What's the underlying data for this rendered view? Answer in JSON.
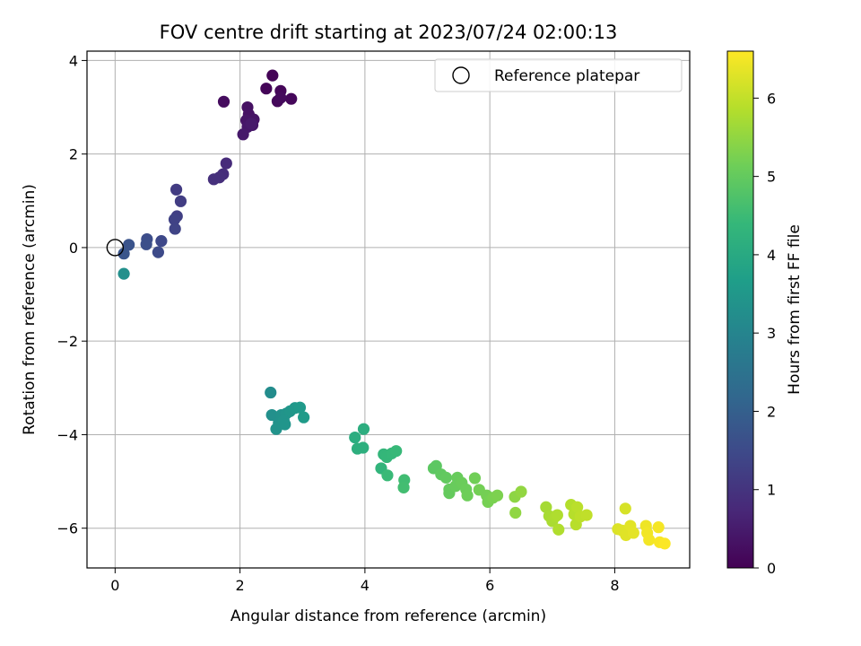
{
  "chart_data": {
    "type": "scatter",
    "title": "FOV centre drift starting at 2023/07/24 02:00:13",
    "xlabel": "Angular distance from reference (arcmin)",
    "ylabel": "Rotation from reference (arcmin)",
    "xlim": [
      -0.45,
      9.2
    ],
    "ylim": [
      -6.85,
      4.2
    ],
    "xticks": [
      0,
      2,
      4,
      6,
      8
    ],
    "yticks": [
      -6,
      -4,
      -2,
      0,
      2,
      4
    ],
    "grid": true,
    "colormap": "viridis",
    "colorbar": {
      "label": "Hours from first FF file",
      "range": [
        0,
        6.6
      ],
      "ticks": [
        0,
        1,
        2,
        3,
        4,
        5,
        6
      ]
    },
    "legend": {
      "placement": "upper-right",
      "entries": [
        "Reference platepar"
      ]
    },
    "reference_point": {
      "x": 0,
      "y": 0,
      "label": "Reference platepar"
    },
    "points": [
      {
        "x": 2.52,
        "y": 3.68,
        "h": 0.05
      },
      {
        "x": 2.42,
        "y": 3.4,
        "h": 0.08
      },
      {
        "x": 2.65,
        "y": 3.35,
        "h": 0.1
      },
      {
        "x": 2.82,
        "y": 3.18,
        "h": 0.12
      },
      {
        "x": 2.6,
        "y": 3.13,
        "h": 0.15
      },
      {
        "x": 2.65,
        "y": 3.2,
        "h": 0.17
      },
      {
        "x": 1.74,
        "y": 3.12,
        "h": 0.2
      },
      {
        "x": 2.12,
        "y": 3.0,
        "h": 0.3
      },
      {
        "x": 2.14,
        "y": 2.85,
        "h": 0.32
      },
      {
        "x": 2.22,
        "y": 2.74,
        "h": 0.35
      },
      {
        "x": 2.1,
        "y": 2.72,
        "h": 0.37
      },
      {
        "x": 2.2,
        "y": 2.62,
        "h": 0.4
      },
      {
        "x": 2.12,
        "y": 2.58,
        "h": 0.42
      },
      {
        "x": 2.05,
        "y": 2.42,
        "h": 0.45
      },
      {
        "x": 2.18,
        "y": 2.65,
        "h": 0.47
      },
      {
        "x": 1.78,
        "y": 1.8,
        "h": 0.8
      },
      {
        "x": 1.73,
        "y": 1.57,
        "h": 0.85
      },
      {
        "x": 1.67,
        "y": 1.5,
        "h": 0.88
      },
      {
        "x": 1.58,
        "y": 1.46,
        "h": 0.9
      },
      {
        "x": 0.98,
        "y": 1.24,
        "h": 1.15
      },
      {
        "x": 1.05,
        "y": 0.99,
        "h": 1.2
      },
      {
        "x": 0.99,
        "y": 0.67,
        "h": 1.25
      },
      {
        "x": 0.95,
        "y": 0.6,
        "h": 1.3
      },
      {
        "x": 0.96,
        "y": 0.4,
        "h": 1.35
      },
      {
        "x": 0.74,
        "y": 0.14,
        "h": 1.45
      },
      {
        "x": 0.69,
        "y": -0.1,
        "h": 1.5
      },
      {
        "x": 0.51,
        "y": 0.18,
        "h": 1.55
      },
      {
        "x": 0.5,
        "y": 0.07,
        "h": 1.6
      },
      {
        "x": 0.22,
        "y": 0.06,
        "h": 1.7
      },
      {
        "x": 0.14,
        "y": -0.13,
        "h": 1.75
      },
      {
        "x": 0.14,
        "y": -0.56,
        "h": 3.3
      },
      {
        "x": 2.49,
        "y": -3.1,
        "h": 3.2
      },
      {
        "x": 2.51,
        "y": -3.58,
        "h": 3.3
      },
      {
        "x": 2.66,
        "y": -3.58,
        "h": 3.35
      },
      {
        "x": 2.74,
        "y": -3.55,
        "h": 3.4
      },
      {
        "x": 2.8,
        "y": -3.5,
        "h": 3.45
      },
      {
        "x": 2.88,
        "y": -3.43,
        "h": 3.5
      },
      {
        "x": 2.96,
        "y": -3.42,
        "h": 3.55
      },
      {
        "x": 3.02,
        "y": -3.63,
        "h": 3.6
      },
      {
        "x": 2.62,
        "y": -3.75,
        "h": 3.35
      },
      {
        "x": 2.7,
        "y": -3.7,
        "h": 3.4
      },
      {
        "x": 2.58,
        "y": -3.88,
        "h": 3.38
      },
      {
        "x": 2.72,
        "y": -3.78,
        "h": 3.42
      },
      {
        "x": 3.84,
        "y": -4.06,
        "h": 4.1
      },
      {
        "x": 3.98,
        "y": -3.88,
        "h": 4.12
      },
      {
        "x": 3.88,
        "y": -4.3,
        "h": 4.15
      },
      {
        "x": 3.97,
        "y": -4.28,
        "h": 4.18
      },
      {
        "x": 4.26,
        "y": -4.72,
        "h": 4.3
      },
      {
        "x": 4.3,
        "y": -4.42,
        "h": 4.35
      },
      {
        "x": 4.35,
        "y": -4.48,
        "h": 4.38
      },
      {
        "x": 4.43,
        "y": -4.4,
        "h": 4.4
      },
      {
        "x": 4.5,
        "y": -4.35,
        "h": 4.42
      },
      {
        "x": 4.36,
        "y": -4.87,
        "h": 4.45
      },
      {
        "x": 4.63,
        "y": -4.97,
        "h": 4.55
      },
      {
        "x": 4.62,
        "y": -5.13,
        "h": 4.58
      },
      {
        "x": 5.1,
        "y": -4.72,
        "h": 4.9
      },
      {
        "x": 5.14,
        "y": -4.67,
        "h": 4.92
      },
      {
        "x": 5.22,
        "y": -4.85,
        "h": 4.95
      },
      {
        "x": 5.3,
        "y": -4.92,
        "h": 4.98
      },
      {
        "x": 5.35,
        "y": -5.17,
        "h": 5.0
      },
      {
        "x": 5.35,
        "y": -5.25,
        "h": 5.02
      },
      {
        "x": 5.45,
        "y": -5.1,
        "h": 5.05
      },
      {
        "x": 5.48,
        "y": -4.92,
        "h": 5.05
      },
      {
        "x": 5.55,
        "y": -5.03,
        "h": 5.08
      },
      {
        "x": 5.62,
        "y": -5.17,
        "h": 5.1
      },
      {
        "x": 5.64,
        "y": -5.3,
        "h": 5.12
      },
      {
        "x": 5.76,
        "y": -4.93,
        "h": 5.15
      },
      {
        "x": 5.83,
        "y": -5.18,
        "h": 5.18
      },
      {
        "x": 5.95,
        "y": -5.3,
        "h": 5.2
      },
      {
        "x": 5.97,
        "y": -5.44,
        "h": 5.22
      },
      {
        "x": 6.05,
        "y": -5.35,
        "h": 5.25
      },
      {
        "x": 6.12,
        "y": -5.3,
        "h": 5.28
      },
      {
        "x": 6.4,
        "y": -5.33,
        "h": 5.45
      },
      {
        "x": 6.41,
        "y": -5.67,
        "h": 5.48
      },
      {
        "x": 6.5,
        "y": -5.22,
        "h": 5.5
      },
      {
        "x": 6.9,
        "y": -5.55,
        "h": 5.7
      },
      {
        "x": 6.95,
        "y": -5.74,
        "h": 5.72
      },
      {
        "x": 7.0,
        "y": -5.85,
        "h": 5.75
      },
      {
        "x": 7.05,
        "y": -5.75,
        "h": 5.78
      },
      {
        "x": 7.08,
        "y": -5.72,
        "h": 5.8
      },
      {
        "x": 7.1,
        "y": -6.03,
        "h": 5.82
      },
      {
        "x": 7.3,
        "y": -5.5,
        "h": 5.85
      },
      {
        "x": 7.35,
        "y": -5.7,
        "h": 5.88
      },
      {
        "x": 7.38,
        "y": -5.92,
        "h": 5.9
      },
      {
        "x": 7.4,
        "y": -5.55,
        "h": 5.92
      },
      {
        "x": 7.45,
        "y": -5.75,
        "h": 5.95
      },
      {
        "x": 7.55,
        "y": -5.72,
        "h": 5.98
      },
      {
        "x": 8.17,
        "y": -5.58,
        "h": 6.2
      },
      {
        "x": 8.05,
        "y": -6.02,
        "h": 6.25
      },
      {
        "x": 8.12,
        "y": -6.05,
        "h": 6.28
      },
      {
        "x": 8.18,
        "y": -6.15,
        "h": 6.3
      },
      {
        "x": 8.25,
        "y": -5.95,
        "h": 6.32
      },
      {
        "x": 8.3,
        "y": -6.1,
        "h": 6.35
      },
      {
        "x": 8.5,
        "y": -5.95,
        "h": 6.45
      },
      {
        "x": 8.52,
        "y": -6.1,
        "h": 6.48
      },
      {
        "x": 8.55,
        "y": -6.25,
        "h": 6.5
      },
      {
        "x": 8.7,
        "y": -5.98,
        "h": 6.52
      },
      {
        "x": 8.72,
        "y": -6.3,
        "h": 6.55
      },
      {
        "x": 8.8,
        "y": -6.33,
        "h": 6.58
      }
    ]
  }
}
